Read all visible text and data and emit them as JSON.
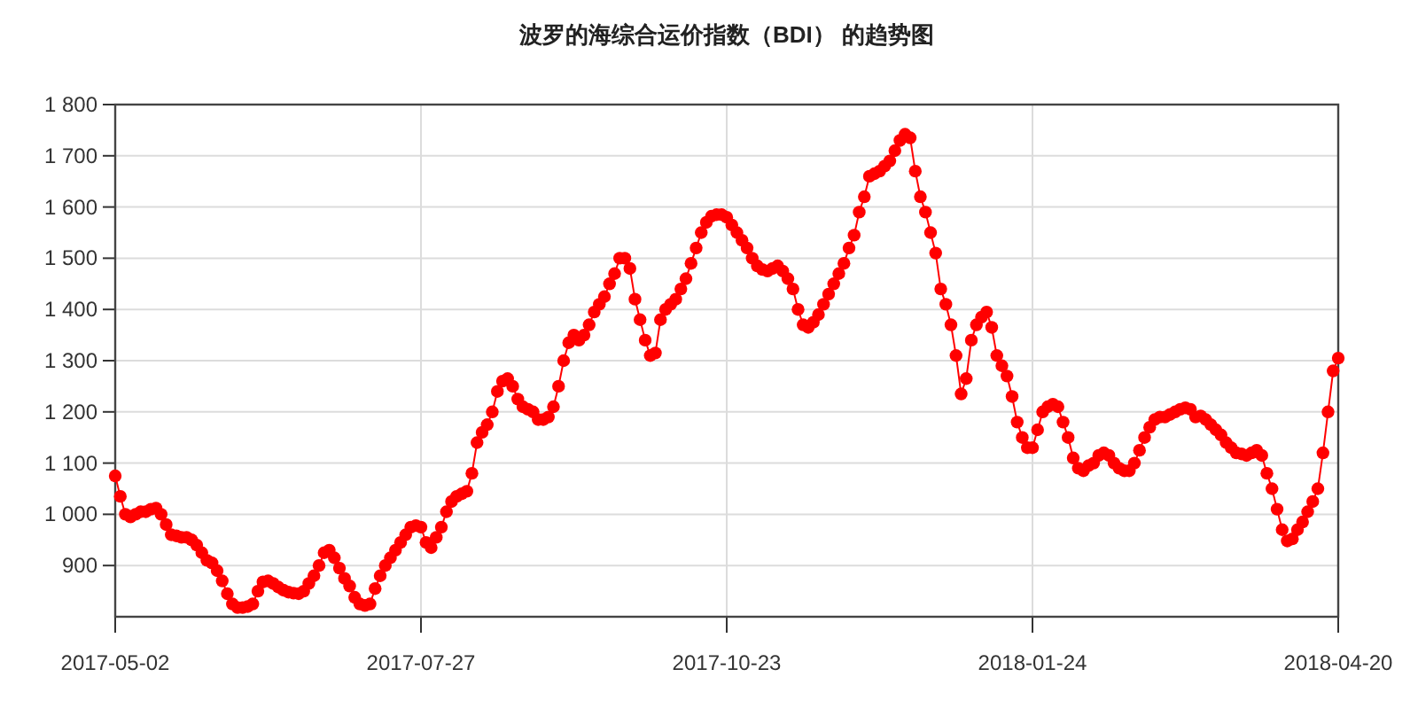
{
  "chart_data": {
    "type": "line",
    "title": "波罗的海综合运价指数（BDI） 的趋势图",
    "categories": [
      "2017-05-02",
      null,
      null,
      null,
      null,
      null,
      null,
      null,
      null,
      null,
      null,
      null,
      null,
      null,
      null,
      null,
      null,
      null,
      null,
      null,
      null,
      null,
      null,
      null,
      null,
      null,
      null,
      null,
      null,
      null,
      null,
      null,
      null,
      null,
      null,
      null,
      null,
      null,
      null,
      null,
      null,
      null,
      null,
      null,
      null,
      null,
      null,
      null,
      null,
      null,
      null,
      null,
      null,
      null,
      null,
      null,
      null,
      null,
      null,
      null,
      "2017-07-27",
      null,
      null,
      null,
      null,
      null,
      null,
      null,
      null,
      null,
      null,
      null,
      null,
      null,
      null,
      null,
      null,
      null,
      null,
      null,
      null,
      null,
      null,
      null,
      null,
      null,
      null,
      null,
      null,
      null,
      null,
      null,
      null,
      null,
      null,
      null,
      null,
      null,
      null,
      null,
      null,
      null,
      null,
      null,
      null,
      null,
      null,
      null,
      null,
      null,
      null,
      null,
      null,
      null,
      null,
      null,
      null,
      null,
      null,
      null,
      "2017-10-23",
      null,
      null,
      null,
      null,
      null,
      null,
      null,
      null,
      null,
      null,
      null,
      null,
      null,
      null,
      null,
      null,
      null,
      null,
      null,
      null,
      null,
      null,
      null,
      null,
      null,
      null,
      null,
      null,
      null,
      null,
      null,
      null,
      null,
      null,
      null,
      null,
      null,
      null,
      null,
      null,
      null,
      null,
      null,
      null,
      null,
      null,
      null,
      null,
      null,
      null,
      null,
      null,
      null,
      null,
      null,
      null,
      null,
      null,
      null,
      "2018-01-24",
      null,
      null,
      null,
      null,
      null,
      null,
      null,
      null,
      null,
      null,
      null,
      null,
      null,
      null,
      null,
      null,
      null,
      null,
      null,
      null,
      null,
      null,
      null,
      null,
      null,
      null,
      null,
      null,
      null,
      null,
      null,
      null,
      null,
      null,
      null,
      null,
      null,
      null,
      null,
      null,
      null,
      null,
      null,
      null,
      null,
      null,
      null,
      null,
      null,
      null,
      null,
      null,
      null,
      null,
      null,
      null,
      null,
      null,
      null,
      "2018-04-20"
    ],
    "series": [
      {
        "color": "#ff0000",
        "values": [
          1075,
          1035,
          1000,
          995,
          1000,
          1005,
          1005,
          1010,
          1012,
          1000,
          980,
          960,
          958,
          955,
          955,
          950,
          940,
          925,
          910,
          905,
          890,
          870,
          845,
          825,
          818,
          818,
          820,
          825,
          850,
          868,
          870,
          865,
          858,
          852,
          848,
          846,
          845,
          850,
          865,
          880,
          900,
          925,
          930,
          915,
          895,
          875,
          860,
          838,
          825,
          822,
          825,
          855,
          880,
          900,
          915,
          930,
          945,
          960,
          975,
          978,
          975,
          945,
          935,
          955,
          975,
          1005,
          1025,
          1035,
          1040,
          1045,
          1080,
          1140,
          1160,
          1175,
          1200,
          1240,
          1260,
          1265,
          1250,
          1225,
          1210,
          1205,
          1200,
          1185,
          1185,
          1190,
          1210,
          1250,
          1300,
          1335,
          1350,
          1340,
          1350,
          1370,
          1395,
          1410,
          1425,
          1450,
          1470,
          1500,
          1500,
          1480,
          1420,
          1380,
          1340,
          1310,
          1315,
          1380,
          1400,
          1410,
          1420,
          1440,
          1460,
          1490,
          1520,
          1550,
          1570,
          1582,
          1585,
          1585,
          1580,
          1565,
          1550,
          1535,
          1520,
          1500,
          1485,
          1478,
          1475,
          1480,
          1485,
          1475,
          1460,
          1440,
          1400,
          1370,
          1365,
          1375,
          1390,
          1410,
          1430,
          1450,
          1470,
          1490,
          1520,
          1545,
          1590,
          1620,
          1660,
          1665,
          1670,
          1680,
          1690,
          1710,
          1730,
          1742,
          1735,
          1670,
          1620,
          1590,
          1550,
          1510,
          1440,
          1410,
          1370,
          1310,
          1235,
          1265,
          1340,
          1370,
          1385,
          1395,
          1365,
          1310,
          1290,
          1270,
          1230,
          1180,
          1150,
          1130,
          1130,
          1165,
          1200,
          1210,
          1215,
          1210,
          1180,
          1150,
          1110,
          1090,
          1085,
          1095,
          1100,
          1115,
          1120,
          1115,
          1100,
          1090,
          1085,
          1085,
          1100,
          1125,
          1150,
          1170,
          1185,
          1190,
          1190,
          1195,
          1200,
          1205,
          1208,
          1205,
          1190,
          1192,
          1185,
          1175,
          1165,
          1155,
          1140,
          1130,
          1120,
          1118,
          1115,
          1120,
          1125,
          1115,
          1080,
          1050,
          1010,
          970,
          948,
          952,
          970,
          985,
          1005,
          1025,
          1050,
          1120,
          1200,
          1280,
          1305
        ]
      }
    ],
    "ylim": [
      800,
      1800
    ],
    "yticks": [
      {
        "value": 900,
        "label": "900"
      },
      {
        "value": 1000,
        "label": "1 000"
      },
      {
        "value": 1100,
        "label": "1 100"
      },
      {
        "value": 1200,
        "label": "1 200"
      },
      {
        "value": 1300,
        "label": "1 300"
      },
      {
        "value": 1400,
        "label": "1 400"
      },
      {
        "value": 1500,
        "label": "1 500"
      },
      {
        "value": 1600,
        "label": "1 600"
      },
      {
        "value": 1700,
        "label": "1 700"
      },
      {
        "value": 1800,
        "label": "1 800"
      }
    ],
    "grid": true,
    "marker": "circle"
  }
}
